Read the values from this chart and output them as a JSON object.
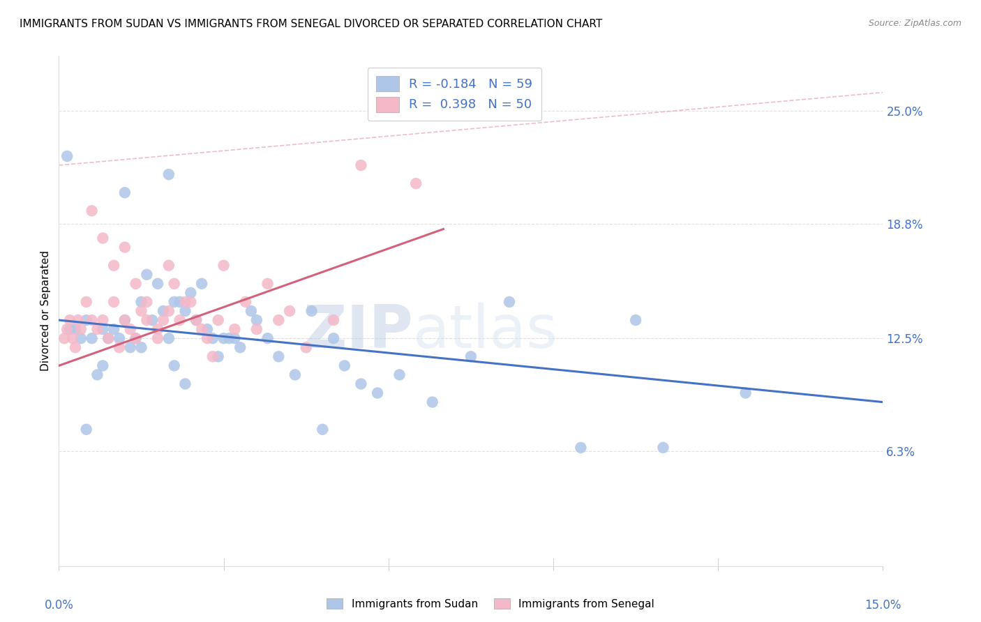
{
  "title": "IMMIGRANTS FROM SUDAN VS IMMIGRANTS FROM SENEGAL DIVORCED OR SEPARATED CORRELATION CHART",
  "source": "Source: ZipAtlas.com",
  "ylabel": "Divorced or Separated",
  "ytick_vals": [
    6.3,
    12.5,
    18.8,
    25.0
  ],
  "ytick_labels": [
    "6.3%",
    "12.5%",
    "18.8%",
    "25.0%"
  ],
  "xlim": [
    0.0,
    15.0
  ],
  "ylim": [
    0.0,
    28.0
  ],
  "legend_entry1": "R = -0.184   N = 59",
  "legend_entry2": "R =  0.398   N = 50",
  "legend_label1": "Immigrants from Sudan",
  "legend_label2": "Immigrants from Senegal",
  "sudan_color": "#aec6e8",
  "senegal_color": "#f4b8c8",
  "sudan_line_color": "#4472c4",
  "senegal_line_color": "#d4607a",
  "trend_dashed_color": "#e8a0b0",
  "background_color": "#ffffff",
  "grid_color": "#d8d8d8",
  "watermark_zip": "ZIP",
  "watermark_atlas": "atlas",
  "sudan_x": [
    0.3,
    0.4,
    0.5,
    0.6,
    0.7,
    0.8,
    0.9,
    1.0,
    1.1,
    1.2,
    1.3,
    1.4,
    1.5,
    1.6,
    1.7,
    1.8,
    1.9,
    2.0,
    2.1,
    2.2,
    2.3,
    2.4,
    2.5,
    2.6,
    2.7,
    2.8,
    2.9,
    3.0,
    3.2,
    3.5,
    3.8,
    4.0,
    4.3,
    4.6,
    5.0,
    5.2,
    5.5,
    5.8,
    6.2,
    6.8,
    7.5,
    8.2,
    9.5,
    10.5,
    11.0,
    12.5,
    3.1,
    3.3,
    3.6,
    4.8,
    2.1,
    2.3,
    1.5,
    0.8,
    0.5,
    0.2,
    1.2,
    2.0,
    0.15
  ],
  "sudan_y": [
    13.0,
    12.5,
    13.5,
    12.5,
    10.5,
    13.0,
    12.5,
    13.0,
    12.5,
    13.5,
    12.0,
    12.5,
    14.5,
    16.0,
    13.5,
    15.5,
    14.0,
    12.5,
    14.5,
    14.5,
    14.0,
    15.0,
    13.5,
    15.5,
    13.0,
    12.5,
    11.5,
    12.5,
    12.5,
    14.0,
    12.5,
    11.5,
    10.5,
    14.0,
    12.5,
    11.0,
    10.0,
    9.5,
    10.5,
    9.0,
    11.5,
    14.5,
    6.5,
    13.5,
    6.5,
    9.5,
    12.5,
    12.0,
    13.5,
    7.5,
    11.0,
    10.0,
    12.0,
    11.0,
    7.5,
    13.0,
    20.5,
    21.5,
    22.5
  ],
  "senegal_x": [
    0.1,
    0.15,
    0.2,
    0.25,
    0.3,
    0.35,
    0.4,
    0.5,
    0.6,
    0.7,
    0.8,
    0.9,
    1.0,
    1.1,
    1.2,
    1.3,
    1.4,
    1.5,
    1.6,
    1.8,
    1.9,
    2.0,
    2.1,
    2.3,
    2.5,
    2.7,
    2.9,
    3.0,
    3.2,
    3.4,
    3.6,
    3.8,
    4.0,
    4.2,
    4.5,
    5.0,
    5.5,
    6.5,
    0.6,
    0.8,
    1.0,
    1.2,
    1.4,
    1.6,
    1.8,
    2.0,
    2.2,
    2.4,
    2.6,
    2.8
  ],
  "senegal_y": [
    12.5,
    13.0,
    13.5,
    12.5,
    12.0,
    13.5,
    13.0,
    14.5,
    13.5,
    13.0,
    13.5,
    12.5,
    14.5,
    12.0,
    13.5,
    13.0,
    12.5,
    14.0,
    13.5,
    13.0,
    13.5,
    16.5,
    15.5,
    14.5,
    13.5,
    12.5,
    13.5,
    16.5,
    13.0,
    14.5,
    13.0,
    15.5,
    13.5,
    14.0,
    12.0,
    13.5,
    22.0,
    21.0,
    19.5,
    18.0,
    16.5,
    17.5,
    15.5,
    14.5,
    12.5,
    14.0,
    13.5,
    14.5,
    13.0,
    11.5
  ],
  "sudan_line_x0": 0.0,
  "sudan_line_x1": 15.0,
  "sudan_line_y0": 13.5,
  "sudan_line_y1": 9.0,
  "senegal_line_x0": 0.0,
  "senegal_line_x1": 7.0,
  "senegal_line_y0": 11.0,
  "senegal_line_y1": 18.5,
  "dashed_line_x0": 0.0,
  "dashed_line_x1": 15.0,
  "dashed_line_y0": 22.0,
  "dashed_line_y1": 26.0
}
